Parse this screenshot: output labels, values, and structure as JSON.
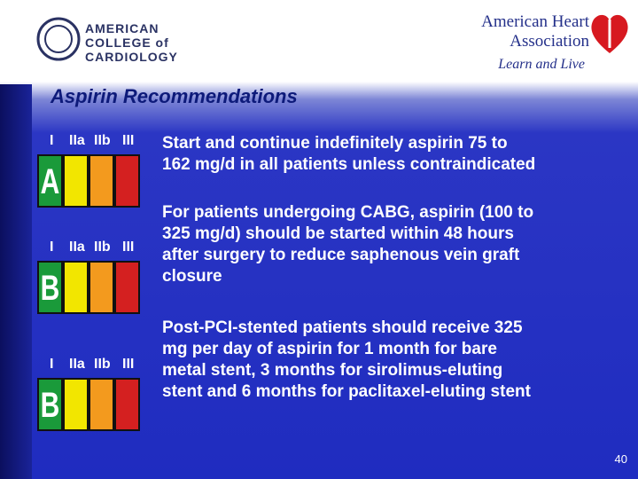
{
  "header": {
    "left_logo": [
      "AMERICAN",
      "COLLEGE of",
      "CARDIOLOGY"
    ],
    "right_logo": [
      "American Heart",
      "Association",
      "Learn and Live"
    ]
  },
  "title": "Aspirin Recommendations",
  "recommendations": [
    {
      "classes": [
        "I",
        "IIa",
        "IIb",
        "III"
      ],
      "level": "A",
      "lines": [
        "Start and continue indefinitely aspirin 75 to",
        "162 mg/d in all patients unless contraindicated"
      ]
    },
    {
      "classes": [
        "I",
        "IIa",
        "IIb",
        "III"
      ],
      "level": "B",
      "lines": [
        "For patients undergoing CABG, aspirin (100 to",
        "325 mg/d) should be started within 48 hours",
        "after surgery to reduce saphenous vein graft",
        "closure"
      ]
    },
    {
      "classes": [
        "I",
        "IIa",
        "IIb",
        "III"
      ],
      "level": "B",
      "lines": [
        "Post-PCI-stented patients should receive 325",
        "mg per day of aspirin for 1 month for bare",
        "metal stent, 3 months for sirolimus-eluting",
        "stent and 6 months for paclitaxel-eluting stent"
      ]
    }
  ],
  "page_number": "40"
}
